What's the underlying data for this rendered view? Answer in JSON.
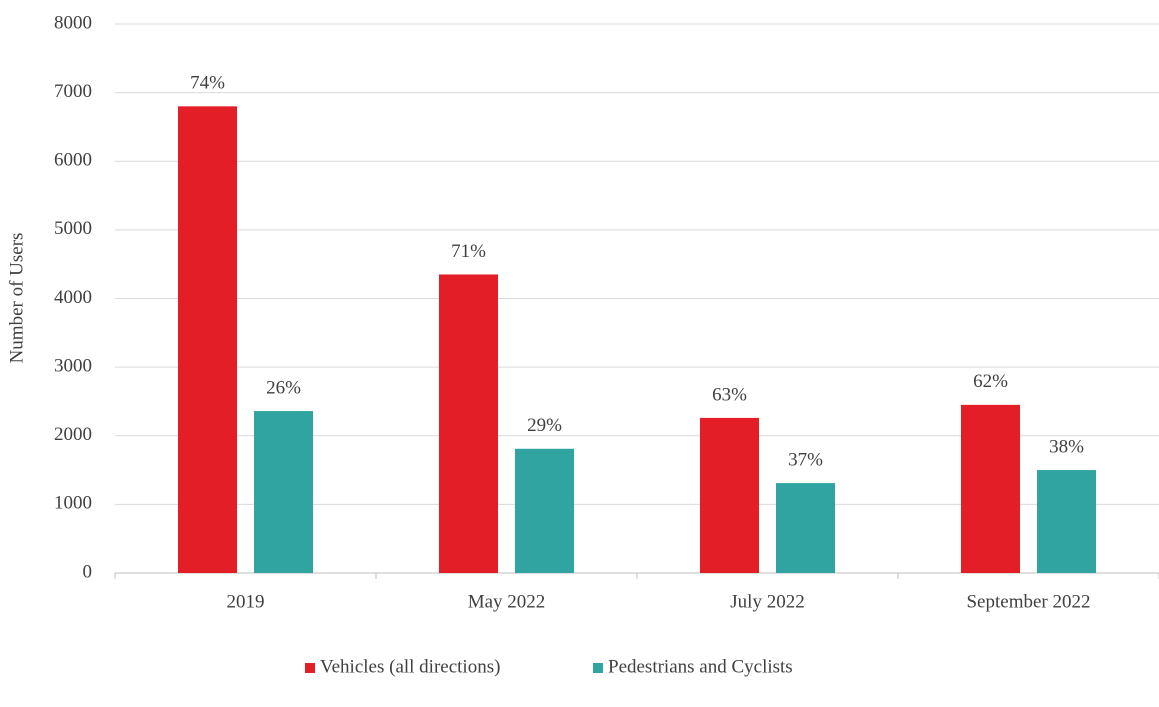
{
  "chart_data": {
    "type": "bar",
    "y_label": "Number of Users",
    "categories": [
      "2019",
      "May 2022",
      "July 2022",
      "September 2022"
    ],
    "series": [
      {
        "name": "Vehicles (all directions)",
        "color": "#e31e26",
        "values": [
          6800,
          4350,
          2260,
          2450
        ],
        "labels": [
          "74%",
          "71%",
          "63%",
          "62%"
        ]
      },
      {
        "name": "Pedestrians and Cyclists",
        "color": "#2fa4a0",
        "values": [
          2360,
          1810,
          1310,
          1500
        ],
        "labels": [
          "26%",
          "29%",
          "37%",
          "38%"
        ]
      }
    ],
    "ylim": [
      0,
      8000
    ],
    "yticks": [
      0,
      1000,
      2000,
      3000,
      4000,
      5000,
      6000,
      7000,
      8000
    ],
    "grid": true,
    "legend": "bottom"
  }
}
